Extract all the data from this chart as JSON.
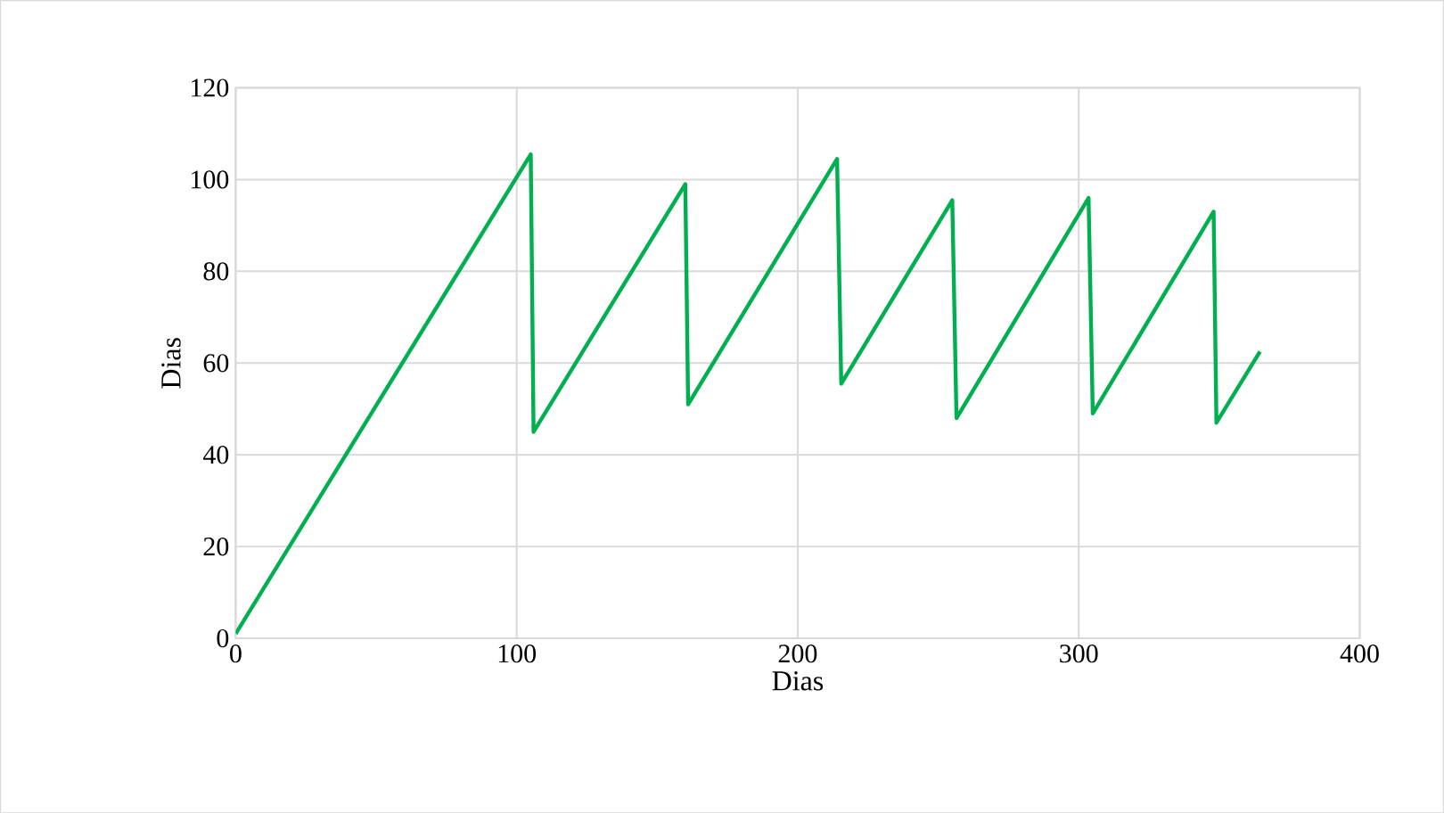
{
  "chart_data": {
    "type": "line",
    "xlabel": "Dias",
    "ylabel": "Dias",
    "x": [
      0,
      105,
      106,
      160,
      161,
      214,
      215.5,
      255,
      256.5,
      303.5,
      305,
      348,
      349,
      364.5
    ],
    "series": [
      {
        "color": "#00b050",
        "values": [
          1,
          105.5,
          45,
          99,
          51,
          104.5,
          55.5,
          95.5,
          48,
          96,
          49,
          93,
          47,
          62.5
        ]
      }
    ],
    "xlim": [
      0,
      400
    ],
    "xticks": [
      0,
      100,
      200,
      300,
      400
    ],
    "ylim": [
      0,
      120
    ],
    "yticks": [
      0,
      20,
      40,
      60,
      80,
      100,
      120
    ],
    "grid": true,
    "marker": "none",
    "line_style": "solid"
  }
}
